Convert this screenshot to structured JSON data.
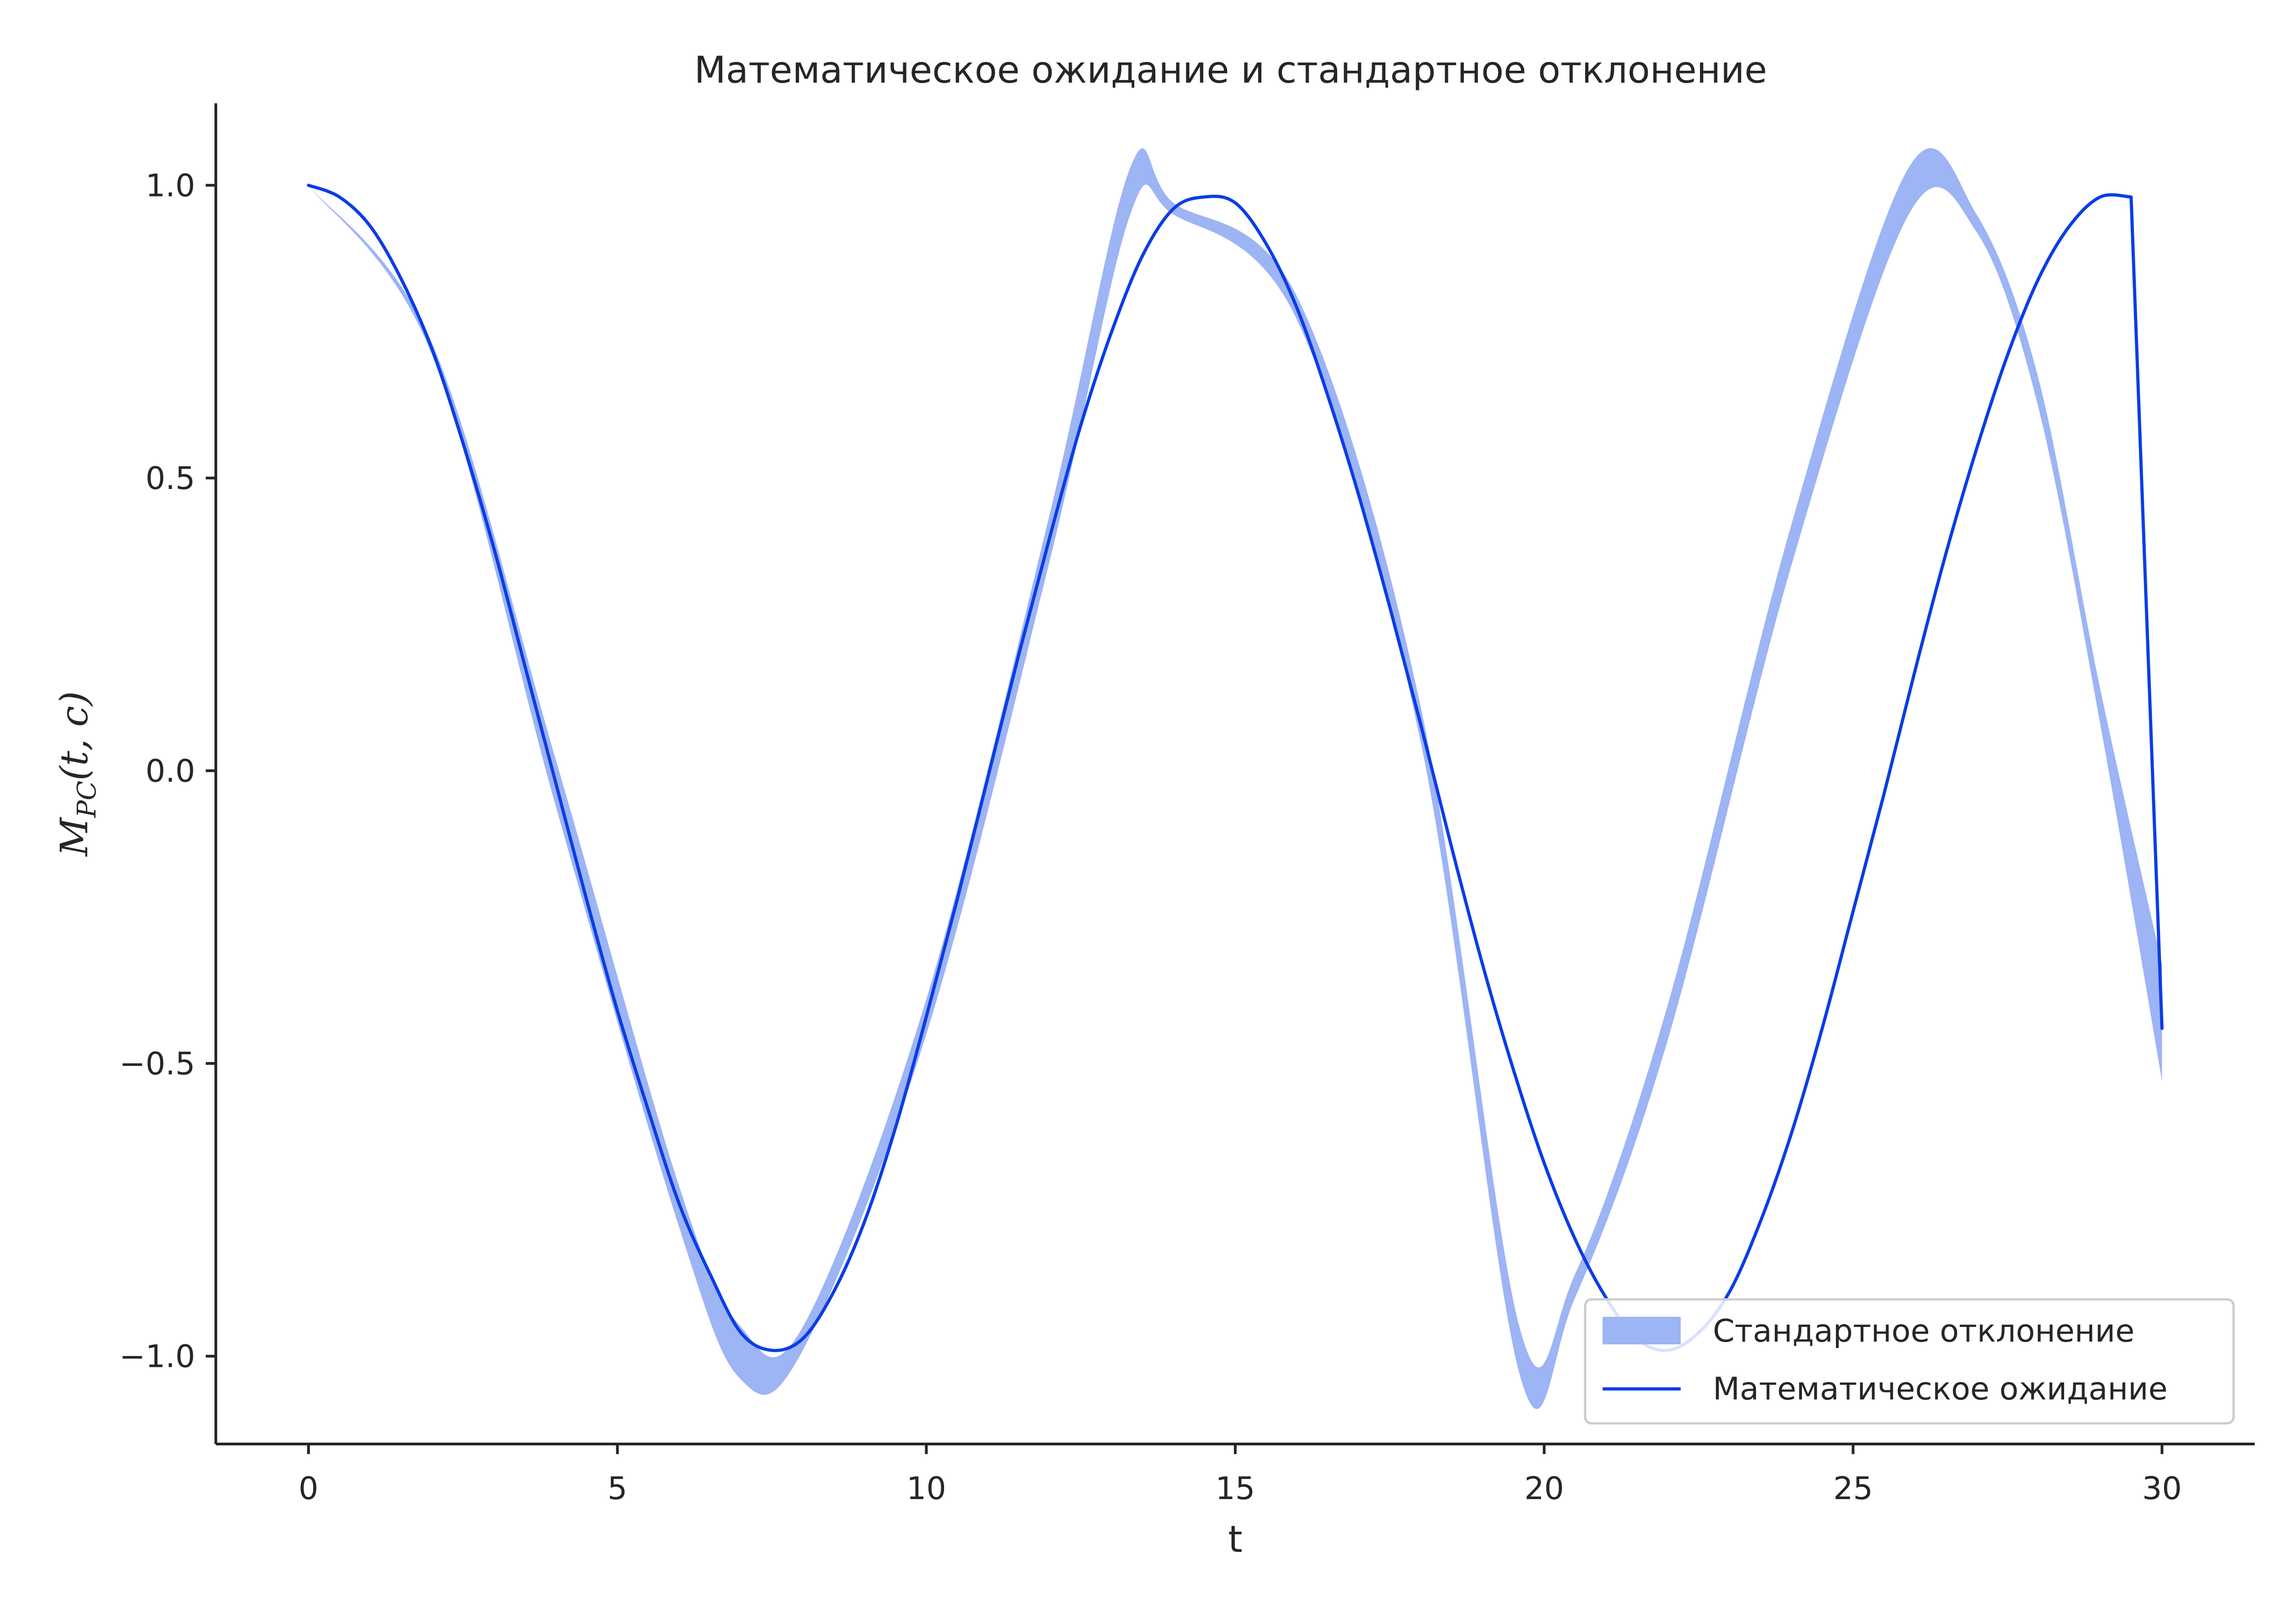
{
  "chart_data": {
    "type": "line",
    "title": "Математическое ожидание и стандартное отклонение",
    "xlabel": "t",
    "ylabel": {
      "main": "M",
      "sub": "PC",
      "args": "(t, c)"
    },
    "xlim": [
      -1.5,
      31.5
    ],
    "ylim": [
      -1.15,
      1.14
    ],
    "x_ticks": [
      0,
      5,
      10,
      15,
      20,
      25,
      30
    ],
    "x_tick_labels": [
      "0",
      "5",
      "10",
      "15",
      "20",
      "25",
      "30"
    ],
    "y_ticks": [
      -1.0,
      -0.5,
      0.0,
      0.5,
      1.0
    ],
    "y_tick_labels": [
      "−1.0",
      "−0.5",
      "0.0",
      "0.5",
      "1.0"
    ],
    "grid": false,
    "legend_position": "lower-right",
    "colors": {
      "line": "#0a3de6",
      "band": "#9db4f5",
      "axes": "#262626",
      "legend_border": "#cccccc"
    },
    "series": [
      {
        "name": "Математическое ожидание",
        "kind": "line",
        "x": [
          0,
          0.5,
          1,
          1.5,
          2,
          2.5,
          3,
          3.5,
          4,
          4.5,
          5,
          5.5,
          6,
          6.5,
          7,
          7.5,
          8,
          8.5,
          9,
          9.5,
          10,
          10.5,
          11,
          11.5,
          12,
          12.5,
          13,
          13.5,
          14,
          14.5,
          15,
          15.5,
          16,
          16.5,
          17,
          17.5,
          18,
          18.5,
          19,
          19.5,
          20,
          20.5,
          21,
          21.5,
          22,
          22.5,
          23,
          23.5,
          24,
          24.5,
          25,
          25.5,
          26,
          26.5,
          27,
          27.5,
          28,
          28.5,
          29,
          29.5,
          30
        ],
        "y": [
          1.0,
          0.98,
          0.93,
          0.84,
          0.72,
          0.56,
          0.38,
          0.18,
          -0.02,
          -0.22,
          -0.41,
          -0.58,
          -0.74,
          -0.86,
          -0.96,
          -0.99,
          -0.97,
          -0.89,
          -0.77,
          -0.61,
          -0.42,
          -0.22,
          -0.01,
          0.2,
          0.4,
          0.59,
          0.75,
          0.88,
          0.96,
          0.98,
          0.97,
          0.9,
          0.79,
          0.64,
          0.47,
          0.28,
          0.08,
          -0.13,
          -0.33,
          -0.51,
          -0.67,
          -0.8,
          -0.9,
          -0.97,
          -0.99,
          -0.96,
          -0.89,
          -0.77,
          -0.62,
          -0.44,
          -0.24,
          -0.04,
          0.17,
          0.37,
          0.55,
          0.71,
          0.84,
          0.93,
          0.98,
          0.98,
          -0.44
        ]
      },
      {
        "name": "Стандартное отклонение",
        "kind": "band",
        "x": [
          0,
          2,
          4,
          6,
          7,
          8,
          10,
          12,
          13.3,
          14,
          16,
          18,
          19.6,
          20.5,
          22,
          24,
          25.9,
          27,
          28,
          29,
          30
        ],
        "upper": [
          1.0,
          0.73,
          0.02,
          -0.71,
          -0.95,
          -0.95,
          -0.39,
          0.44,
          1.03,
          0.97,
          0.81,
          0.11,
          -0.95,
          -0.86,
          -0.4,
          0.42,
          1.03,
          0.95,
          0.67,
          0.14,
          -0.33
        ],
        "lower": [
          1.0,
          0.71,
          -0.06,
          -0.78,
          -1.04,
          -0.99,
          -0.45,
          0.36,
          0.95,
          0.95,
          0.77,
          0.05,
          -1.03,
          -0.9,
          -0.46,
          0.35,
          0.95,
          0.92,
          0.62,
          0.08,
          -0.53
        ]
      }
    ]
  }
}
